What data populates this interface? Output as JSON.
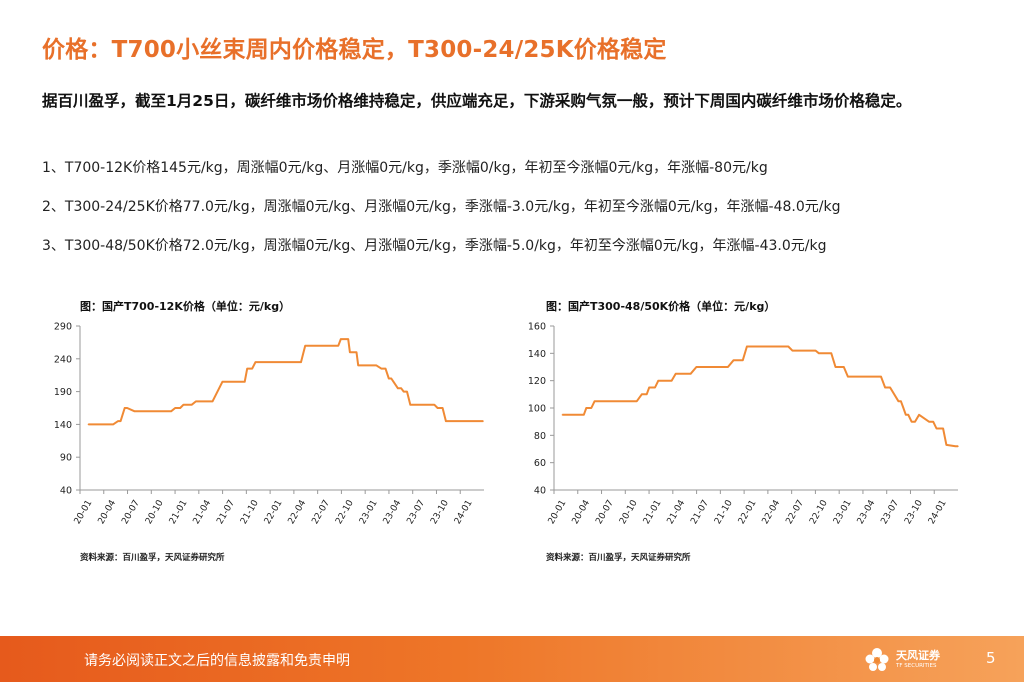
{
  "page": {
    "title": "价格：T700小丝束周内价格稳定，T300-24/25K价格稳定",
    "summary": "据百川盈孚，截至1月25日，碳纤维市场价格维持稳定，供应端充足，下游采购气氛一般，预计下周国内碳纤维市场价格稳定。",
    "items": [
      "1、T700-12K价格145元/kg，周涨幅0元/kg、月涨幅0元/kg，季涨幅0/kg，年初至今涨幅0元/kg，年涨幅-80元/kg",
      "2、T300-24/25K价格77.0元/kg，周涨幅0元/kg、月涨幅0元/kg，季涨幅-3.0元/kg，年初至今涨幅0元/kg，年涨幅-48.0元/kg",
      "3、T300-48/50K价格72.0元/kg，周涨幅0元/kg、月涨幅0元/kg，季涨幅-5.0/kg，年初至今涨幅0元/kg，年涨幅-43.0元/kg"
    ]
  },
  "chart_data": [
    {
      "type": "line",
      "title": "图：国产T700-12K价格（单位：元/kg）",
      "source": "资料来源：百川盈孚，天风证券研究所",
      "xlabel": "",
      "ylabel": "",
      "ylim": [
        40,
        290
      ],
      "y_ticks": [
        40,
        90,
        140,
        190,
        240,
        290
      ],
      "x_ticks": [
        "20-01",
        "20-04",
        "20-07",
        "20-10",
        "21-01",
        "21-04",
        "21-07",
        "21-10",
        "22-01",
        "22-04",
        "22-07",
        "22-10",
        "23-01",
        "23-04",
        "23-07",
        "23-10",
        "24-01"
      ],
      "xlim": [
        0,
        48.8
      ],
      "color": "#F08A35",
      "series": [
        {
          "name": "T700-12K",
          "x": [
            1,
            3.6,
            4,
            4.6,
            4.9,
            5.4,
            5.7,
            6.6,
            7.4,
            8.6,
            9.6,
            11,
            11.5,
            12.1,
            12.5,
            13.5,
            14,
            16,
            17.2,
            19.9,
            20.2,
            20.8,
            21.2,
            23.2,
            26.7,
            27.2,
            31.2,
            31.5,
            32.4,
            32.6,
            33.4,
            33.6,
            35.8,
            36.4,
            36.9,
            37.3,
            37.6,
            38.4,
            38.8,
            39.1,
            39.5,
            39.9,
            42.8,
            43.2,
            43.8,
            44.2,
            48.7
          ],
          "values": [
            140,
            140,
            140,
            145,
            145,
            165,
            165,
            160,
            160,
            160,
            160,
            160,
            165,
            165,
            170,
            170,
            175,
            175,
            205,
            205,
            225,
            225,
            235,
            235,
            235,
            260,
            260,
            270,
            270,
            250,
            250,
            230,
            230,
            225,
            225,
            210,
            210,
            195,
            195,
            190,
            190,
            170,
            170,
            165,
            165,
            145,
            145
          ]
        }
      ]
    },
    {
      "type": "line",
      "title": "图：国产T300-48/50K价格（单位：元/kg）",
      "source": "资料来源：百川盈孚，天风证券研究所",
      "xlabel": "",
      "ylabel": "",
      "ylim": [
        40,
        160
      ],
      "y_ticks": [
        40,
        60,
        80,
        100,
        120,
        140,
        160
      ],
      "x_ticks": [
        "20-01",
        "20-04",
        "20-07",
        "20-10",
        "21-01",
        "21-04",
        "21-07",
        "21-10",
        "22-01",
        "22-04",
        "22-07",
        "22-10",
        "23-01",
        "23-04",
        "23-07",
        "23-10",
        "24-01"
      ],
      "xlim": [
        0,
        48.8
      ],
      "color": "#F08A35",
      "series": [
        {
          "name": "T300-48/50K",
          "x": [
            1,
            3.6,
            3.9,
            4.5,
            4.9,
            5.4,
            8.3,
            10,
            10.6,
            11.2,
            11.5,
            12.2,
            12.6,
            14.2,
            14.7,
            16.5,
            17.2,
            19.5,
            21,
            21.7,
            22.8,
            23.3,
            28.3,
            28.8,
            31.6,
            32,
            33.5,
            34,
            35,
            35.5,
            39.5,
            40,
            40.6,
            41.6,
            41.9,
            42.2,
            42.5,
            42.8,
            43.2,
            43.6,
            44.1,
            45.3,
            45.8,
            46.2,
            47,
            47.4,
            48.5,
            49.3,
            51.2
          ],
          "values": [
            95,
            95,
            100,
            100,
            105,
            105,
            105,
            105,
            110,
            110,
            115,
            115,
            120,
            120,
            125,
            125,
            130,
            130,
            130,
            135,
            135,
            145,
            145,
            142,
            142,
            140,
            140,
            130,
            130,
            123,
            123,
            115,
            115,
            105,
            105,
            100,
            95,
            95,
            90,
            90,
            95,
            90,
            90,
            85,
            85,
            73,
            72,
            72,
            72
          ]
        }
      ]
    }
  ],
  "footer": {
    "disclaimer": "请务必阅读正文之后的信息披露和免责申明",
    "logo_name": "天风证券",
    "logo_sub": "TF SECURITIES",
    "page_number": "5"
  },
  "colors": {
    "accent": "#E8702A",
    "line": "#F08A35",
    "footer": "#EE7628"
  }
}
